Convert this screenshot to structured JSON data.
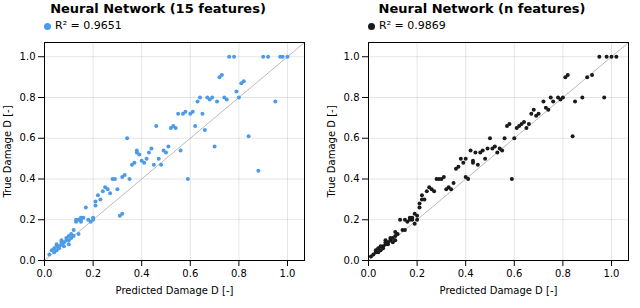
{
  "chart_data": [
    {
      "type": "scatter",
      "title": "Neural Network (15 features)",
      "x_label": "Predicted Damage D [-]",
      "y_label": "True Damage D [-]",
      "series": [
        {
          "name": "R² = 0.9651",
          "color": "#4C9BE8",
          "x": [
            0.02,
            0.03,
            0.04,
            0.04,
            0.05,
            0.05,
            0.05,
            0.06,
            0.06,
            0.07,
            0.07,
            0.07,
            0.08,
            0.08,
            0.09,
            0.09,
            0.1,
            0.1,
            0.1,
            0.11,
            0.11,
            0.12,
            0.12,
            0.13,
            0.13,
            0.14,
            0.14,
            0.15,
            0.15,
            0.15,
            0.16,
            0.17,
            0.18,
            0.19,
            0.2,
            0.2,
            0.21,
            0.21,
            0.22,
            0.23,
            0.24,
            0.25,
            0.26,
            0.27,
            0.28,
            0.29,
            0.3,
            0.31,
            0.32,
            0.32,
            0.33,
            0.34,
            0.35,
            0.36,
            0.37,
            0.38,
            0.38,
            0.39,
            0.4,
            0.41,
            0.42,
            0.43,
            0.44,
            0.45,
            0.46,
            0.47,
            0.48,
            0.49,
            0.5,
            0.51,
            0.52,
            0.53,
            0.54,
            0.55,
            0.56,
            0.57,
            0.58,
            0.59,
            0.6,
            0.61,
            0.62,
            0.63,
            0.64,
            0.65,
            0.66,
            0.67,
            0.68,
            0.69,
            0.7,
            0.71,
            0.72,
            0.73,
            0.74,
            0.75,
            0.76,
            0.78,
            0.79,
            0.8,
            0.81,
            0.82,
            0.84,
            0.88,
            0.9,
            0.92,
            0.95,
            0.97,
            0.98,
            1.0
          ],
          "y": [
            0.03,
            0.05,
            0.04,
            0.06,
            0.05,
            0.07,
            0.08,
            0.06,
            0.07,
            0.08,
            0.09,
            0.1,
            0.07,
            0.09,
            0.1,
            0.11,
            0.08,
            0.1,
            0.12,
            0.11,
            0.13,
            0.12,
            0.15,
            0.19,
            0.2,
            0.13,
            0.2,
            0.19,
            0.2,
            0.21,
            0.21,
            0.26,
            0.2,
            0.19,
            0.2,
            0.21,
            0.27,
            0.29,
            0.32,
            0.3,
            0.34,
            0.36,
            0.35,
            0.33,
            0.4,
            0.4,
            0.35,
            0.22,
            0.23,
            0.41,
            0.42,
            0.6,
            0.4,
            0.47,
            0.48,
            0.53,
            0.54,
            0.52,
            0.49,
            0.48,
            0.5,
            0.53,
            0.55,
            0.47,
            0.66,
            0.5,
            0.47,
            0.54,
            0.53,
            0.56,
            0.65,
            0.66,
            0.65,
            0.72,
            0.54,
            0.72,
            0.73,
            0.4,
            0.72,
            0.73,
            0.66,
            0.78,
            0.8,
            0.72,
            0.64,
            0.8,
            0.79,
            0.8,
            0.56,
            0.78,
            0.9,
            0.91,
            0.8,
            0.79,
            1.0,
            1.0,
            0.83,
            0.8,
            0.87,
            0.88,
            0.61,
            0.44,
            1.0,
            1.0,
            0.78,
            1.0,
            1.0,
            1.0
          ]
        }
      ],
      "reference_line": {
        "x": [
          0,
          1.1
        ],
        "y": [
          0,
          1.1
        ],
        "color": "#bbbbbb"
      },
      "xlim": [
        0.0,
        1.07
      ],
      "ylim": [
        0.0,
        1.07
      ],
      "xticks": [
        {
          "value": 0.0,
          "label": "0.0"
        },
        0.2,
        0.4,
        0.6,
        0.8,
        {
          "value": 1.0,
          "label": "1.0"
        }
      ],
      "yticks": [
        {
          "value": 0.0,
          "label": "0.0"
        },
        0.2,
        0.4,
        0.6,
        0.8,
        {
          "value": 1.0,
          "label": "1.0"
        }
      ],
      "grid": true,
      "legend": "upper left"
    },
    {
      "type": "scatter",
      "title": "Neural Network (n features)",
      "x_label": "Predicted Damage D [-]",
      "y_label": "True Damage D [-]",
      "series": [
        {
          "name": "R² = 0.9869",
          "color": "#1a1a1a",
          "x": [
            0.01,
            0.02,
            0.03,
            0.03,
            0.04,
            0.04,
            0.05,
            0.05,
            0.06,
            0.06,
            0.07,
            0.07,
            0.07,
            0.08,
            0.08,
            0.09,
            0.09,
            0.1,
            0.1,
            0.11,
            0.11,
            0.11,
            0.12,
            0.13,
            0.14,
            0.15,
            0.15,
            0.16,
            0.17,
            0.17,
            0.18,
            0.18,
            0.19,
            0.19,
            0.2,
            0.2,
            0.21,
            0.21,
            0.22,
            0.22,
            0.23,
            0.24,
            0.25,
            0.26,
            0.27,
            0.28,
            0.29,
            0.3,
            0.31,
            0.32,
            0.33,
            0.34,
            0.35,
            0.36,
            0.37,
            0.38,
            0.39,
            0.4,
            0.4,
            0.41,
            0.42,
            0.43,
            0.43,
            0.44,
            0.45,
            0.46,
            0.47,
            0.48,
            0.49,
            0.5,
            0.51,
            0.52,
            0.53,
            0.54,
            0.55,
            0.56,
            0.57,
            0.58,
            0.59,
            0.6,
            0.61,
            0.62,
            0.63,
            0.64,
            0.65,
            0.66,
            0.67,
            0.68,
            0.69,
            0.7,
            0.72,
            0.73,
            0.74,
            0.75,
            0.76,
            0.78,
            0.79,
            0.8,
            0.81,
            0.82,
            0.84,
            0.85,
            0.88,
            0.9,
            0.92,
            0.95,
            0.97,
            0.98,
            1.0,
            1.02
          ],
          "y": [
            0.02,
            0.03,
            0.04,
            0.05,
            0.04,
            0.06,
            0.05,
            0.07,
            0.06,
            0.07,
            0.08,
            0.09,
            0.1,
            0.08,
            0.09,
            0.1,
            0.11,
            0.09,
            0.11,
            0.1,
            0.12,
            0.14,
            0.13,
            0.2,
            0.15,
            0.15,
            0.2,
            0.19,
            0.2,
            0.21,
            0.2,
            0.21,
            0.18,
            0.23,
            0.2,
            0.22,
            0.26,
            0.28,
            0.32,
            0.3,
            0.3,
            0.34,
            0.36,
            0.35,
            0.34,
            0.4,
            0.4,
            0.4,
            0.41,
            0.35,
            0.36,
            0.35,
            0.38,
            0.45,
            0.46,
            0.5,
            0.48,
            0.41,
            0.5,
            0.4,
            0.54,
            0.48,
            0.49,
            0.53,
            0.47,
            0.53,
            0.54,
            0.5,
            0.55,
            0.6,
            0.55,
            0.56,
            0.53,
            0.55,
            0.54,
            0.6,
            0.66,
            0.67,
            0.4,
            0.6,
            0.65,
            0.66,
            0.67,
            0.68,
            0.65,
            0.67,
            0.72,
            0.74,
            0.71,
            0.72,
            0.78,
            0.75,
            0.74,
            0.8,
            0.78,
            0.8,
            0.79,
            0.8,
            0.9,
            0.91,
            0.61,
            0.78,
            0.8,
            0.9,
            0.91,
            1.0,
            0.8,
            1.0,
            1.0,
            1.0
          ]
        }
      ],
      "reference_line": {
        "x": [
          0,
          1.1
        ],
        "y": [
          0,
          1.1
        ],
        "color": "#bbbbbb"
      },
      "xlim": [
        0.0,
        1.07
      ],
      "ylim": [
        0.0,
        1.07
      ],
      "xticks": [
        {
          "value": 0.0,
          "label": "0.0"
        },
        0.2,
        0.4,
        0.6,
        0.8,
        {
          "value": 1.0,
          "label": "1.0"
        }
      ],
      "yticks": [
        {
          "value": 0.0,
          "label": "0.0"
        },
        0.2,
        0.4,
        0.6,
        0.8,
        {
          "value": 1.0,
          "label": "1.0"
        }
      ],
      "grid": true,
      "legend": "upper left"
    }
  ]
}
